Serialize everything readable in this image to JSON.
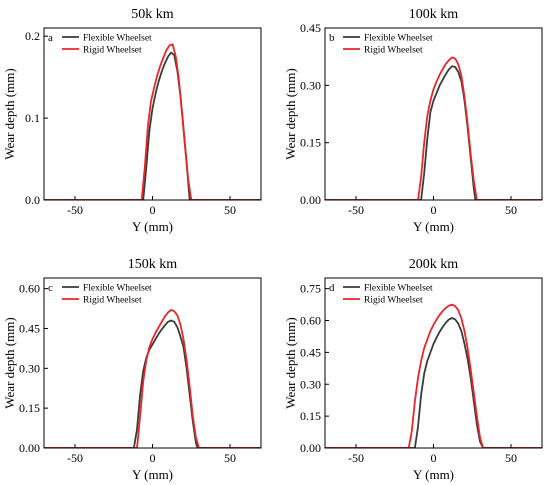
{
  "chart_data": [
    {
      "type": "line",
      "panel_letter": "a",
      "title": "50k km",
      "xlabel": "Y (mm)",
      "ylabel": "Wear depth (mm)",
      "xlim": [
        -70,
        70
      ],
      "ylim": [
        0,
        0.21
      ],
      "xticks": [
        -50,
        0,
        50
      ],
      "yticks": [
        0.0,
        0.1,
        0.2
      ],
      "ytick_labels": [
        "0.0",
        "0.1",
        "0.2"
      ],
      "legend_position": "top-left",
      "series": [
        {
          "name": "Flexible Wheelset",
          "color": "#3a3a3a",
          "x": [
            -70,
            -6,
            -4,
            -2,
            0,
            2,
            4,
            6,
            8,
            10,
            12,
            14,
            16,
            18,
            20,
            22,
            24,
            70
          ],
          "y": [
            0,
            0,
            0.04,
            0.085,
            0.112,
            0.13,
            0.145,
            0.157,
            0.167,
            0.175,
            0.18,
            0.177,
            0.158,
            0.128,
            0.088,
            0.045,
            0,
            0
          ]
        },
        {
          "name": "Rigid Wheelset",
          "color": "#e8262a",
          "x": [
            -70,
            -7,
            -5,
            -3,
            -1,
            1,
            3,
            5,
            7,
            9,
            11,
            13,
            15,
            17,
            19,
            21,
            23,
            25,
            70
          ],
          "y": [
            0,
            0,
            0.04,
            0.09,
            0.12,
            0.137,
            0.152,
            0.164,
            0.174,
            0.183,
            0.189,
            0.19,
            0.175,
            0.148,
            0.108,
            0.065,
            0.025,
            0,
            0
          ]
        }
      ]
    },
    {
      "type": "line",
      "panel_letter": "b",
      "title": "100k km",
      "xlabel": "Y (mm)",
      "ylabel": "Wear depth (mm)",
      "xlim": [
        -70,
        70
      ],
      "ylim": [
        0,
        0.45
      ],
      "xticks": [
        -50,
        0,
        50
      ],
      "yticks": [
        0.0,
        0.15,
        0.3,
        0.45
      ],
      "ytick_labels": [
        "0.00",
        "0.15",
        "0.30",
        "0.45"
      ],
      "legend_position": "top-left",
      "series": [
        {
          "name": "Flexible Wheelset",
          "color": "#3a3a3a",
          "x": [
            -70,
            -8,
            -6,
            -4,
            -2,
            0,
            2,
            4,
            6,
            8,
            10,
            12,
            14,
            16,
            18,
            20,
            22,
            24,
            26,
            27,
            70
          ],
          "y": [
            0,
            0,
            0.07,
            0.16,
            0.23,
            0.26,
            0.28,
            0.3,
            0.315,
            0.33,
            0.342,
            0.35,
            0.348,
            0.335,
            0.31,
            0.26,
            0.19,
            0.11,
            0.03,
            0,
            0
          ]
        },
        {
          "name": "Rigid Wheelset",
          "color": "#e8262a",
          "x": [
            -70,
            -10,
            -8,
            -6,
            -4,
            -2,
            0,
            2,
            4,
            6,
            8,
            10,
            12,
            14,
            16,
            18,
            20,
            22,
            24,
            26,
            28,
            70
          ],
          "y": [
            0,
            0,
            0.06,
            0.15,
            0.22,
            0.26,
            0.29,
            0.31,
            0.328,
            0.343,
            0.356,
            0.366,
            0.373,
            0.37,
            0.355,
            0.325,
            0.27,
            0.2,
            0.12,
            0.05,
            0,
            0
          ]
        }
      ]
    },
    {
      "type": "line",
      "panel_letter": "c",
      "title": "150k km",
      "xlabel": "Y (mm)",
      "ylabel": "Wear depth (mm)",
      "xlim": [
        -70,
        70
      ],
      "ylim": [
        0,
        0.64
      ],
      "xticks": [
        -50,
        0,
        50
      ],
      "yticks": [
        0.0,
        0.15,
        0.3,
        0.45,
        0.6
      ],
      "ytick_labels": [
        "0.00",
        "0.15",
        "0.30",
        "0.45",
        "0.60"
      ],
      "legend_position": "top-left",
      "series": [
        {
          "name": "Flexible Wheelset",
          "color": "#3a3a3a",
          "x": [
            -70,
            -12,
            -10,
            -8,
            -6,
            -4,
            -2,
            0,
            2,
            4,
            6,
            8,
            10,
            12,
            14,
            16,
            18,
            20,
            22,
            24,
            26,
            28,
            29,
            70
          ],
          "y": [
            0,
            0,
            0.07,
            0.2,
            0.29,
            0.34,
            0.37,
            0.39,
            0.41,
            0.43,
            0.447,
            0.462,
            0.475,
            0.48,
            0.475,
            0.455,
            0.42,
            0.38,
            0.3,
            0.2,
            0.1,
            0.02,
            0,
            0
          ]
        },
        {
          "name": "Rigid Wheelset",
          "color": "#e8262a",
          "x": [
            -70,
            -10,
            -8,
            -6,
            -4,
            -2,
            0,
            2,
            4,
            6,
            8,
            10,
            12,
            14,
            16,
            18,
            20,
            22,
            24,
            26,
            28,
            30,
            70
          ],
          "y": [
            0,
            0,
            0.12,
            0.25,
            0.33,
            0.38,
            0.41,
            0.435,
            0.455,
            0.475,
            0.495,
            0.51,
            0.52,
            0.515,
            0.5,
            0.465,
            0.41,
            0.33,
            0.23,
            0.12,
            0.04,
            0,
            0
          ]
        }
      ]
    },
    {
      "type": "line",
      "panel_letter": "d",
      "title": "200k km",
      "xlabel": "Y (mm)",
      "ylabel": "Wear depth (mm)",
      "xlim": [
        -70,
        70
      ],
      "ylim": [
        0,
        0.8
      ],
      "xticks": [
        -50,
        0,
        50
      ],
      "yticks": [
        0.0,
        0.15,
        0.3,
        0.45,
        0.6,
        0.75
      ],
      "ytick_labels": [
        "0.00",
        "0.15",
        "0.30",
        "0.45",
        "0.60",
        "0.75"
      ],
      "legend_position": "top-left",
      "series": [
        {
          "name": "Flexible Wheelset",
          "color": "#3a3a3a",
          "x": [
            -70,
            -12,
            -10,
            -8,
            -6,
            -4,
            -2,
            0,
            2,
            4,
            6,
            8,
            10,
            12,
            14,
            16,
            18,
            20,
            22,
            24,
            26,
            28,
            30,
            32,
            70
          ],
          "y": [
            0,
            0,
            0.1,
            0.25,
            0.35,
            0.41,
            0.45,
            0.49,
            0.52,
            0.548,
            0.57,
            0.59,
            0.605,
            0.612,
            0.605,
            0.585,
            0.55,
            0.49,
            0.42,
            0.33,
            0.22,
            0.11,
            0.03,
            0,
            0
          ]
        },
        {
          "name": "Rigid Wheelset",
          "color": "#e8262a",
          "x": [
            -70,
            -16,
            -14,
            -12,
            -10,
            -8,
            -6,
            -4,
            -2,
            0,
            2,
            4,
            6,
            8,
            10,
            12,
            14,
            16,
            18,
            20,
            22,
            24,
            26,
            28,
            30,
            32,
            70
          ],
          "y": [
            0,
            0,
            0.08,
            0.22,
            0.33,
            0.41,
            0.47,
            0.51,
            0.55,
            0.58,
            0.605,
            0.627,
            0.645,
            0.66,
            0.67,
            0.675,
            0.668,
            0.648,
            0.61,
            0.55,
            0.47,
            0.37,
            0.26,
            0.15,
            0.05,
            0,
            0
          ]
        }
      ]
    }
  ]
}
